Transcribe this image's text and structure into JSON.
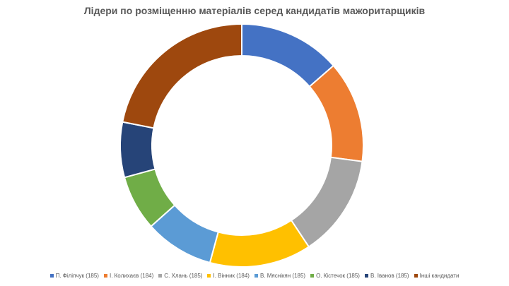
{
  "chart_data": {
    "type": "pie",
    "variant": "doughnut",
    "title": "Лідери по розміщенню матеріалів серед кандидатів мажоритарщиків",
    "legend_position": "bottom",
    "series": [
      {
        "name": "П. Філіпчук (185)",
        "value": 185,
        "color": "#4472C4"
      },
      {
        "name": "І.  Колихаєв (184)",
        "value": 184,
        "color": "#ED7D31"
      },
      {
        "name": "С. Хлань (185)",
        "value": 185,
        "color": "#A5A5A5"
      },
      {
        "name": "І. Вінник (184)",
        "value": 184,
        "color": "#FFC000"
      },
      {
        "name": "В. Мяснікян (185)",
        "value": 125,
        "color": "#5B9BD5"
      },
      {
        "name": "О. Кістечок (185)",
        "value": 100,
        "color": "#70AD47"
      },
      {
        "name": "В. Іванов (185)",
        "value": 100,
        "color": "#264478"
      },
      {
        "name": "Інші кандидати",
        "value": 298,
        "color": "#9E480E"
      }
    ]
  }
}
